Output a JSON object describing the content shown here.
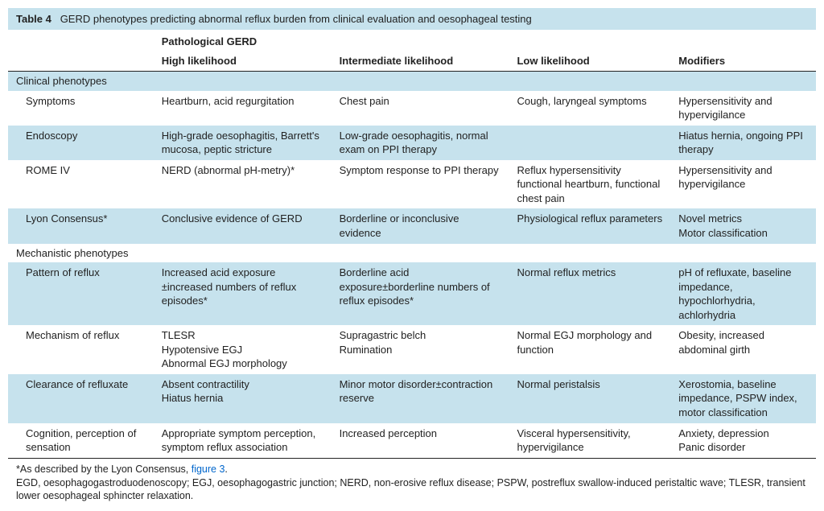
{
  "title_prefix": "Table 4",
  "title_text": "GERD phenotypes predicting abnormal reflux burden from clinical evaluation and oesophageal testing",
  "super_header": "Pathological GERD",
  "columns": {
    "c1": "",
    "c2": "High likelihood",
    "c3": "Intermediate likelihood",
    "c4": "Low likelihood",
    "c5": "Modifiers"
  },
  "sections": [
    {
      "name": "Clinical phenotypes",
      "rows": [
        {
          "label": "Symptoms",
          "high": "Heartburn, acid regurgitation",
          "mid": "Chest pain",
          "low": "Cough, laryngeal symptoms",
          "mod": "Hypersensitivity and hypervigilance"
        },
        {
          "label": "Endoscopy",
          "high": "High-grade oesophagitis, Barrett's mucosa, peptic stricture",
          "mid": "Low-grade oesophagitis, normal exam on PPI therapy",
          "low": "",
          "mod": "Hiatus hernia, ongoing PPI therapy"
        },
        {
          "label": "ROME IV",
          "high": "NERD (abnormal pH-metry)*",
          "mid": "Symptom response to PPI therapy",
          "low": "Reflux hypersensitivity functional heartburn, functional chest pain",
          "mod": "Hypersensitivity and hypervigilance"
        },
        {
          "label": "Lyon Consensus*",
          "high": "Conclusive evidence of GERD",
          "mid": "Borderline or inconclusive evidence",
          "low": "Physiological reflux parameters",
          "mod": "Novel metrics\nMotor classification"
        }
      ]
    },
    {
      "name": "Mechanistic phenotypes",
      "rows": [
        {
          "label": "Pattern of reflux",
          "high": "Increased acid exposure ±increased numbers of reflux episodes*",
          "mid": "Borderline acid exposure±borderline numbers of reflux episodes*",
          "low": "Normal reflux metrics",
          "mod": "pH of refluxate, baseline impedance, hypochlorhydria, achlorhydria"
        },
        {
          "label": "Mechanism of reflux",
          "high": "TLESR\nHypotensive EGJ\nAbnormal EGJ morphology",
          "mid": "Supragastric belch\nRumination",
          "low": "Normal EGJ morphology and function",
          "mod": "Obesity, increased abdominal girth"
        },
        {
          "label": "Clearance of refluxate",
          "high": "Absent contractility\nHiatus hernia",
          "mid": "Minor motor disorder±contraction reserve",
          "low": "Normal peristalsis",
          "mod": "Xerostomia, baseline impedance, PSPW index, motor classification"
        },
        {
          "label": "Cognition, perception of sensation",
          "high": "Appropriate symptom perception, symptom reflux association",
          "mid": "Increased perception",
          "low": "Visceral hypersensitivity, hypervigilance",
          "mod": "Anxiety, depression\nPanic disorder"
        }
      ]
    }
  ],
  "footnote_star": "*As described by the Lyon Consensus, ",
  "footnote_figlink": "figure 3",
  "footnote_star_end": ".",
  "footnote_abbrev": "EGD, oesophagogastroduodenoscopy; EGJ, oesophagogastric junction; NERD, non-erosive reflux disease; PSPW, postreflux swallow-induced peristaltic wave; TLESR, transient lower oesophageal sphincter relaxation.",
  "colors": {
    "band": "#c6e2ed",
    "rule": "#222222",
    "link": "#0066cc",
    "text": "#222222",
    "bg": "#ffffff"
  },
  "fontsize_body": 13,
  "fontsize_footnote": 12.5
}
